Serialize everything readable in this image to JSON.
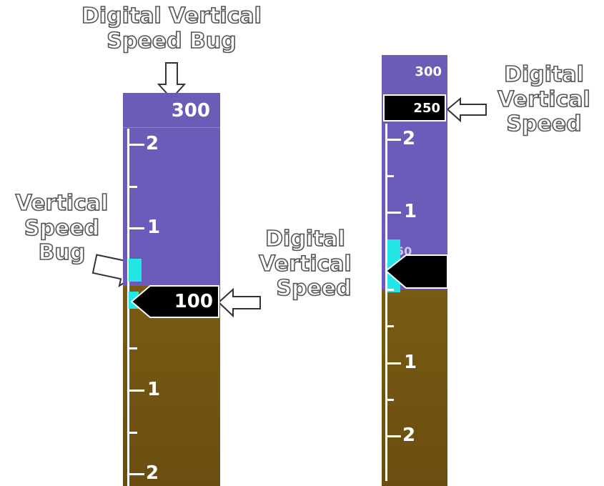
{
  "callouts": {
    "digital_vs_bug": [
      "Digital Vertical",
      "Speed Bug"
    ],
    "vs_bug": [
      "Vertical",
      "Speed",
      "Bug"
    ],
    "digital_vs_left": [
      "Digital",
      "Vertical",
      "Speed"
    ],
    "digital_vs_right": [
      "Digital",
      "Vertical",
      "Speed"
    ]
  },
  "left_indicator": {
    "bug_value": "300",
    "readout_value": "100",
    "ticks_up": [
      "2",
      "1"
    ],
    "ticks_down": [
      "1",
      "2"
    ]
  },
  "right_indicator": {
    "bug_value": "300",
    "readout_value": "250",
    "partial_label": "50",
    "ticks_up": [
      "2",
      "1"
    ],
    "ticks_down": [
      "1",
      "2"
    ]
  },
  "colors": {
    "sky": "#6a5bba",
    "ground": "#725512",
    "bug": "#22e6e6",
    "readout_box": "#000000"
  }
}
